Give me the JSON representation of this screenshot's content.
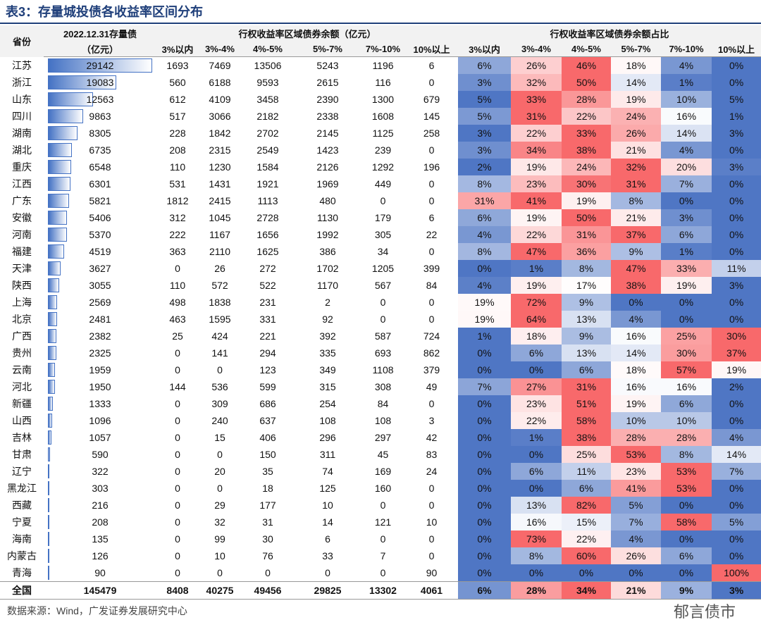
{
  "title": "表3：存量城投债各收益率区间分布",
  "header": {
    "province": "省份",
    "stock": [
      "2022.12.31存量债",
      "（亿元）"
    ],
    "group_amount": "行权收益率区域债券余额（亿元）",
    "group_share": "行权收益率区域债券余额占比",
    "bands": [
      "3%以内",
      "3%-4%",
      "4%-5%",
      "5%-7%",
      "7%-10%",
      "10%以上"
    ]
  },
  "rows": [
    [
      "江苏",
      29142,
      1693,
      7469,
      13506,
      5243,
      1196,
      6,
      "6%",
      "26%",
      "46%",
      "18%",
      "4%",
      "0%"
    ],
    [
      "浙江",
      19083,
      560,
      6188,
      9593,
      2615,
      116,
      0,
      "3%",
      "32%",
      "50%",
      "14%",
      "1%",
      "0%"
    ],
    [
      "山东",
      12563,
      612,
      4109,
      3458,
      2390,
      1300,
      679,
      "5%",
      "33%",
      "28%",
      "19%",
      "10%",
      "5%"
    ],
    [
      "四川",
      9863,
      517,
      3066,
      2182,
      2338,
      1608,
      145,
      "5%",
      "31%",
      "22%",
      "24%",
      "16%",
      "1%"
    ],
    [
      "湖南",
      8305,
      228,
      1842,
      2702,
      2145,
      1125,
      258,
      "3%",
      "22%",
      "33%",
      "26%",
      "14%",
      "3%"
    ],
    [
      "湖北",
      6735,
      208,
      2315,
      2549,
      1423,
      239,
      0,
      "3%",
      "34%",
      "38%",
      "21%",
      "4%",
      "0%"
    ],
    [
      "重庆",
      6548,
      110,
      1230,
      1584,
      2126,
      1292,
      196,
      "2%",
      "19%",
      "24%",
      "32%",
      "20%",
      "3%"
    ],
    [
      "江西",
      6301,
      531,
      1431,
      1921,
      1969,
      449,
      0,
      "8%",
      "23%",
      "30%",
      "31%",
      "7%",
      "0%"
    ],
    [
      "广东",
      5821,
      1812,
      2415,
      1113,
      480,
      0,
      0,
      "31%",
      "41%",
      "19%",
      "8%",
      "0%",
      "0%"
    ],
    [
      "安徽",
      5406,
      312,
      1045,
      2728,
      1130,
      179,
      6,
      "6%",
      "19%",
      "50%",
      "21%",
      "3%",
      "0%"
    ],
    [
      "河南",
      5370,
      222,
      1167,
      1656,
      1992,
      305,
      22,
      "4%",
      "22%",
      "31%",
      "37%",
      "6%",
      "0%"
    ],
    [
      "福建",
      4519,
      363,
      2110,
      1625,
      386,
      34,
      0,
      "8%",
      "47%",
      "36%",
      "9%",
      "1%",
      "0%"
    ],
    [
      "天津",
      3627,
      0,
      26,
      272,
      1702,
      1205,
      399,
      "0%",
      "1%",
      "8%",
      "47%",
      "33%",
      "11%"
    ],
    [
      "陕西",
      3055,
      110,
      572,
      522,
      1170,
      567,
      84,
      "4%",
      "19%",
      "17%",
      "38%",
      "19%",
      "3%"
    ],
    [
      "上海",
      2569,
      498,
      1838,
      231,
      2,
      0,
      0,
      "19%",
      "72%",
      "9%",
      "0%",
      "0%",
      "0%"
    ],
    [
      "北京",
      2481,
      463,
      1595,
      331,
      92,
      0,
      0,
      "19%",
      "64%",
      "13%",
      "4%",
      "0%",
      "0%"
    ],
    [
      "广西",
      2382,
      25,
      424,
      221,
      392,
      587,
      724,
      "1%",
      "18%",
      "9%",
      "16%",
      "25%",
      "30%"
    ],
    [
      "贵州",
      2325,
      0,
      141,
      294,
      335,
      693,
      862,
      "0%",
      "6%",
      "13%",
      "14%",
      "30%",
      "37%"
    ],
    [
      "云南",
      1959,
      0,
      0,
      123,
      349,
      1108,
      379,
      "0%",
      "0%",
      "6%",
      "18%",
      "57%",
      "19%"
    ],
    [
      "河北",
      1950,
      144,
      536,
      599,
      315,
      308,
      49,
      "7%",
      "27%",
      "31%",
      "16%",
      "16%",
      "2%"
    ],
    [
      "新疆",
      1333,
      0,
      309,
      686,
      254,
      84,
      0,
      "0%",
      "23%",
      "51%",
      "19%",
      "6%",
      "0%"
    ],
    [
      "山西",
      1096,
      0,
      240,
      637,
      108,
      108,
      3,
      "0%",
      "22%",
      "58%",
      "10%",
      "10%",
      "0%"
    ],
    [
      "吉林",
      1057,
      0,
      15,
      406,
      296,
      297,
      42,
      "0%",
      "1%",
      "38%",
      "28%",
      "28%",
      "4%"
    ],
    [
      "甘肃",
      590,
      0,
      0,
      150,
      311,
      45,
      83,
      "0%",
      "0%",
      "25%",
      "53%",
      "8%",
      "14%"
    ],
    [
      "辽宁",
      322,
      0,
      20,
      35,
      74,
      169,
      24,
      "0%",
      "6%",
      "11%",
      "23%",
      "53%",
      "7%"
    ],
    [
      "黑龙江",
      303,
      0,
      0,
      18,
      125,
      160,
      0,
      "0%",
      "0%",
      "6%",
      "41%",
      "53%",
      "0%"
    ],
    [
      "西藏",
      216,
      0,
      29,
      177,
      10,
      0,
      0,
      "0%",
      "13%",
      "82%",
      "5%",
      "0%",
      "0%"
    ],
    [
      "宁夏",
      208,
      0,
      32,
      31,
      14,
      121,
      10,
      "0%",
      "16%",
      "15%",
      "7%",
      "58%",
      "5%"
    ],
    [
      "海南",
      135,
      0,
      99,
      30,
      6,
      0,
      0,
      "0%",
      "73%",
      "22%",
      "4%",
      "0%",
      "0%"
    ],
    [
      "内蒙古",
      126,
      0,
      10,
      76,
      33,
      7,
      0,
      "0%",
      "8%",
      "60%",
      "26%",
      "6%",
      "0%"
    ],
    [
      "青海",
      90,
      0,
      0,
      0,
      0,
      0,
      90,
      "0%",
      "0%",
      "0%",
      "0%",
      "0%",
      "100%"
    ]
  ],
  "total": [
    "全国",
    145479,
    8408,
    40275,
    49456,
    29825,
    13302,
    4061,
    "6%",
    "28%",
    "34%",
    "21%",
    "9%",
    "3%"
  ],
  "footer": {
    "source": "数据来源：Wind，广发证券发展研究中心",
    "watermark": "郁言债市"
  }
}
